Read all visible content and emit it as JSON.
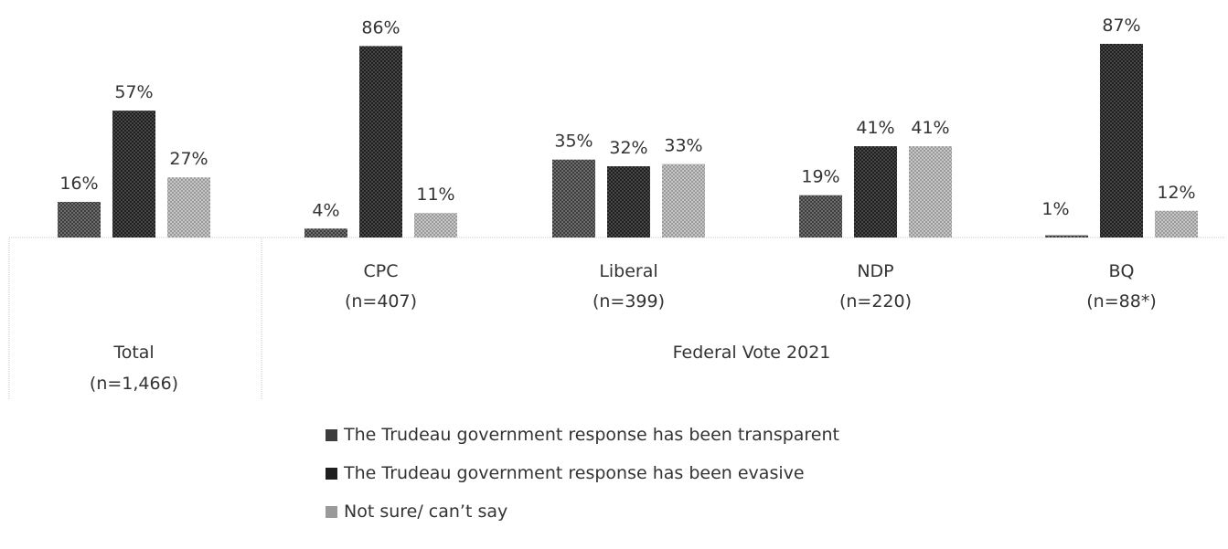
{
  "chart_data": {
    "type": "bar",
    "categories": [
      {
        "label": "Total",
        "n": "(n=1,466)"
      },
      {
        "label": "CPC",
        "n": "(n=407)"
      },
      {
        "label": "Liberal",
        "n": "(n=399)"
      },
      {
        "label": "NDP",
        "n": "(n=220)"
      },
      {
        "label": "BQ",
        "n": "(n=88*)"
      }
    ],
    "group_label": "Federal Vote 2021",
    "series": [
      {
        "name": "The Trudeau government response has been transparent",
        "values": [
          16,
          4,
          35,
          19,
          1
        ],
        "labels": [
          "16%",
          "4%",
          "35%",
          "19%",
          "1%"
        ],
        "color": "#3d3d3d"
      },
      {
        "name": "The Trudeau government response has been evasive",
        "values": [
          57,
          86,
          32,
          41,
          87
        ],
        "labels": [
          "57%",
          "86%",
          "32%",
          "41%",
          "87%"
        ],
        "color": "#222222"
      },
      {
        "name": "Not sure/ can’t say",
        "values": [
          27,
          11,
          33,
          41,
          12
        ],
        "labels": [
          "27%",
          "11%",
          "33%",
          "41%",
          "12%"
        ],
        "color": "#a6a6a6"
      }
    ],
    "ylim": [
      0,
      100
    ],
    "grid": false,
    "legend_position": "bottom"
  }
}
